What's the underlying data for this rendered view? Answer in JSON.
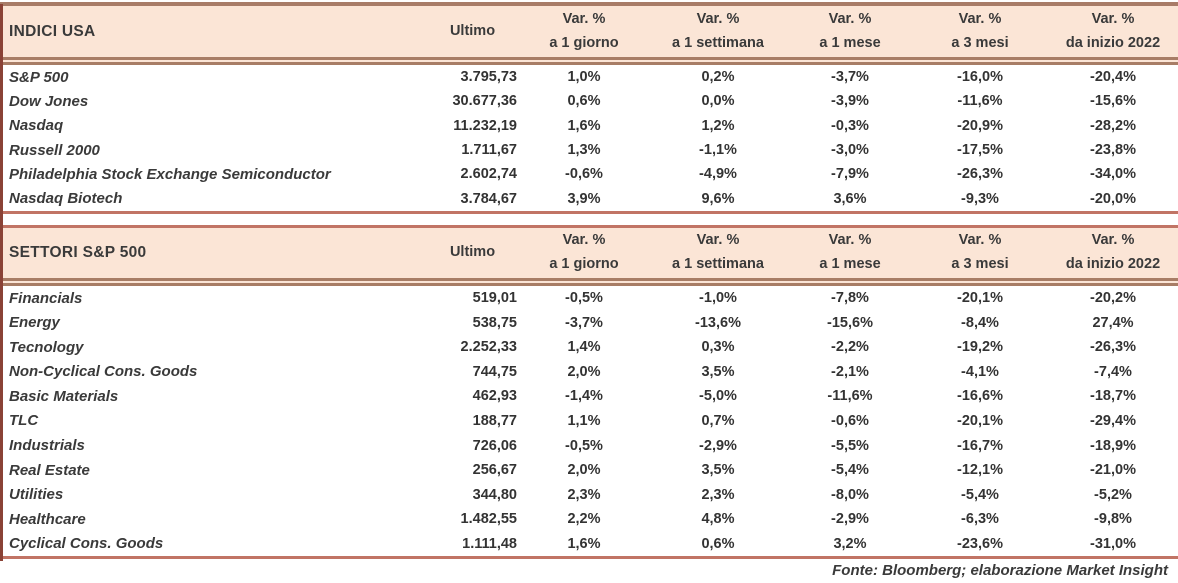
{
  "labels": {
    "ultimo": "Ultimo",
    "var": "Var. %",
    "periods": [
      "a 1 giorno",
      "a 1 settimana",
      "a 1 mese",
      "a 3 mesi",
      "da inizio 2022"
    ]
  },
  "tables": [
    {
      "title": "INDICI USA",
      "rows": [
        {
          "name": "S&P 500",
          "ultimo": "3.795,73",
          "vars": [
            "1,0%",
            "0,2%",
            "-3,7%",
            "-16,0%",
            "-20,4%"
          ]
        },
        {
          "name": "Dow Jones",
          "ultimo": "30.677,36",
          "vars": [
            "0,6%",
            "0,0%",
            "-3,9%",
            "-11,6%",
            "-15,6%"
          ]
        },
        {
          "name": "Nasdaq",
          "ultimo": "11.232,19",
          "vars": [
            "1,6%",
            "1,2%",
            "-0,3%",
            "-20,9%",
            "-28,2%"
          ]
        },
        {
          "name": "Russell 2000",
          "ultimo": "1.711,67",
          "vars": [
            "1,3%",
            "-1,1%",
            "-3,0%",
            "-17,5%",
            "-23,8%"
          ]
        },
        {
          "name": "Philadelphia Stock Exchange Semiconductor",
          "ultimo": "2.602,74",
          "vars": [
            "-0,6%",
            "-4,9%",
            "-7,9%",
            "-26,3%",
            "-34,0%"
          ]
        },
        {
          "name": "Nasdaq Biotech",
          "ultimo": "3.784,67",
          "vars": [
            "3,9%",
            "9,6%",
            "3,6%",
            "-9,3%",
            "-20,0%"
          ]
        }
      ]
    },
    {
      "title": "SETTORI S&P 500",
      "rows": [
        {
          "name": "Financials",
          "ultimo": "519,01",
          "vars": [
            "-0,5%",
            "-1,0%",
            "-7,8%",
            "-20,1%",
            "-20,2%"
          ]
        },
        {
          "name": "Energy",
          "ultimo": "538,75",
          "vars": [
            "-3,7%",
            "-13,6%",
            "-15,6%",
            "-8,4%",
            "27,4%"
          ]
        },
        {
          "name": "Tecnology",
          "ultimo": "2.252,33",
          "vars": [
            "1,4%",
            "0,3%",
            "-2,2%",
            "-19,2%",
            "-26,3%"
          ]
        },
        {
          "name": "Non-Cyclical Cons. Goods",
          "ultimo": "744,75",
          "vars": [
            "2,0%",
            "3,5%",
            "-2,1%",
            "-4,1%",
            "-7,4%"
          ]
        },
        {
          "name": "Basic Materials",
          "ultimo": "462,93",
          "vars": [
            "-1,4%",
            "-5,0%",
            "-11,6%",
            "-16,6%",
            "-18,7%"
          ]
        },
        {
          "name": "TLC",
          "ultimo": "188,77",
          "vars": [
            "1,1%",
            "0,7%",
            "-0,6%",
            "-20,1%",
            "-29,4%"
          ]
        },
        {
          "name": "Industrials",
          "ultimo": "726,06",
          "vars": [
            "-0,5%",
            "-2,9%",
            "-5,5%",
            "-16,7%",
            "-18,9%"
          ]
        },
        {
          "name": "Real Estate",
          "ultimo": "256,67",
          "vars": [
            "2,0%",
            "3,5%",
            "-5,4%",
            "-12,1%",
            "-21,0%"
          ]
        },
        {
          "name": "Utilities",
          "ultimo": "344,80",
          "vars": [
            "2,3%",
            "2,3%",
            "-8,0%",
            "-5,4%",
            "-5,2%"
          ]
        },
        {
          "name": "Healthcare",
          "ultimo": "1.482,55",
          "vars": [
            "2,2%",
            "4,8%",
            "-2,9%",
            "-6,3%",
            "-9,8%"
          ]
        },
        {
          "name": "Cyclical Cons. Goods",
          "ultimo": "1.111,48",
          "vars": [
            "1,6%",
            "0,6%",
            "3,2%",
            "-23,6%",
            "-31,0%"
          ]
        }
      ]
    }
  ],
  "footer": "Fonte: Bloomberg; elaborazione Market Insight",
  "colors": {
    "header_bg": "#fbe5d6",
    "rule_red": "#c17465",
    "rule_brown": "#a87d66",
    "left_edge": "#8a4236",
    "text": "#3a3a3a"
  }
}
